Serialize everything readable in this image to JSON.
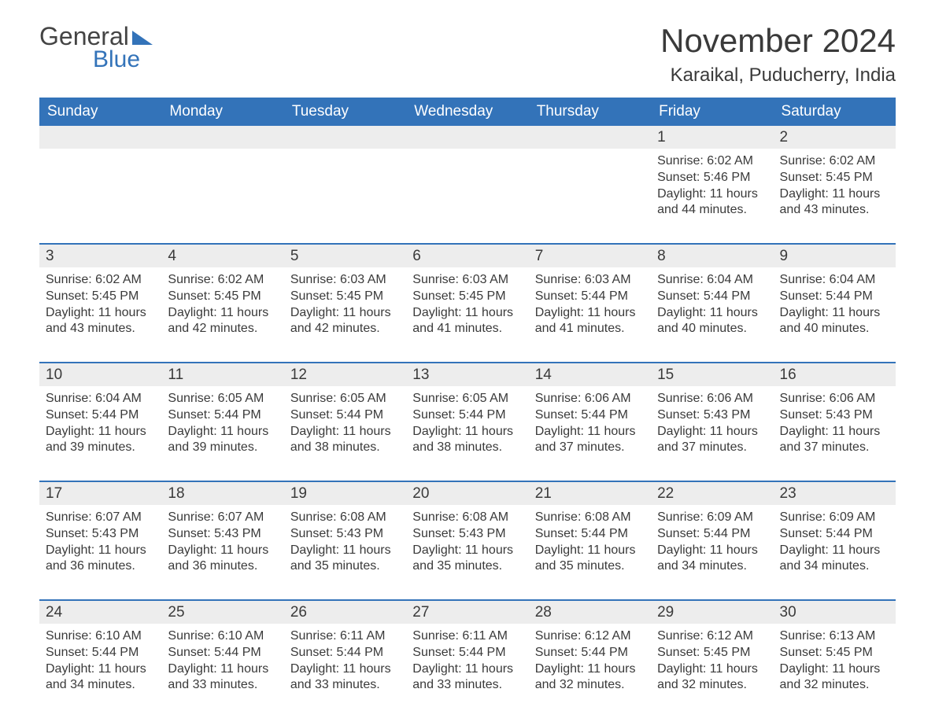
{
  "brand": {
    "word1": "General",
    "word2": "Blue"
  },
  "title": "November 2024",
  "location": "Karaikal, Puducherry, India",
  "colors": {
    "header_bg": "#3373b9",
    "header_text": "#ffffff",
    "daynum_bg": "#ededed",
    "week_divider": "#3373b9",
    "body_text": "#3a3a3a",
    "page_bg": "#ffffff",
    "logo_accent": "#3373b9"
  },
  "typography": {
    "title_fontsize": 42,
    "location_fontsize": 24,
    "dow_fontsize": 19,
    "daynum_fontsize": 19,
    "cell_fontsize": 16
  },
  "days_of_week": [
    "Sunday",
    "Monday",
    "Tuesday",
    "Wednesday",
    "Thursday",
    "Friday",
    "Saturday"
  ],
  "weeks": [
    [
      null,
      null,
      null,
      null,
      null,
      {
        "n": "1",
        "sunrise": "Sunrise: 6:02 AM",
        "sunset": "Sunset: 5:46 PM",
        "daylight": "Daylight: 11 hours and 44 minutes."
      },
      {
        "n": "2",
        "sunrise": "Sunrise: 6:02 AM",
        "sunset": "Sunset: 5:45 PM",
        "daylight": "Daylight: 11 hours and 43 minutes."
      }
    ],
    [
      {
        "n": "3",
        "sunrise": "Sunrise: 6:02 AM",
        "sunset": "Sunset: 5:45 PM",
        "daylight": "Daylight: 11 hours and 43 minutes."
      },
      {
        "n": "4",
        "sunrise": "Sunrise: 6:02 AM",
        "sunset": "Sunset: 5:45 PM",
        "daylight": "Daylight: 11 hours and 42 minutes."
      },
      {
        "n": "5",
        "sunrise": "Sunrise: 6:03 AM",
        "sunset": "Sunset: 5:45 PM",
        "daylight": "Daylight: 11 hours and 42 minutes."
      },
      {
        "n": "6",
        "sunrise": "Sunrise: 6:03 AM",
        "sunset": "Sunset: 5:45 PM",
        "daylight": "Daylight: 11 hours and 41 minutes."
      },
      {
        "n": "7",
        "sunrise": "Sunrise: 6:03 AM",
        "sunset": "Sunset: 5:44 PM",
        "daylight": "Daylight: 11 hours and 41 minutes."
      },
      {
        "n": "8",
        "sunrise": "Sunrise: 6:04 AM",
        "sunset": "Sunset: 5:44 PM",
        "daylight": "Daylight: 11 hours and 40 minutes."
      },
      {
        "n": "9",
        "sunrise": "Sunrise: 6:04 AM",
        "sunset": "Sunset: 5:44 PM",
        "daylight": "Daylight: 11 hours and 40 minutes."
      }
    ],
    [
      {
        "n": "10",
        "sunrise": "Sunrise: 6:04 AM",
        "sunset": "Sunset: 5:44 PM",
        "daylight": "Daylight: 11 hours and 39 minutes."
      },
      {
        "n": "11",
        "sunrise": "Sunrise: 6:05 AM",
        "sunset": "Sunset: 5:44 PM",
        "daylight": "Daylight: 11 hours and 39 minutes."
      },
      {
        "n": "12",
        "sunrise": "Sunrise: 6:05 AM",
        "sunset": "Sunset: 5:44 PM",
        "daylight": "Daylight: 11 hours and 38 minutes."
      },
      {
        "n": "13",
        "sunrise": "Sunrise: 6:05 AM",
        "sunset": "Sunset: 5:44 PM",
        "daylight": "Daylight: 11 hours and 38 minutes."
      },
      {
        "n": "14",
        "sunrise": "Sunrise: 6:06 AM",
        "sunset": "Sunset: 5:44 PM",
        "daylight": "Daylight: 11 hours and 37 minutes."
      },
      {
        "n": "15",
        "sunrise": "Sunrise: 6:06 AM",
        "sunset": "Sunset: 5:43 PM",
        "daylight": "Daylight: 11 hours and 37 minutes."
      },
      {
        "n": "16",
        "sunrise": "Sunrise: 6:06 AM",
        "sunset": "Sunset: 5:43 PM",
        "daylight": "Daylight: 11 hours and 37 minutes."
      }
    ],
    [
      {
        "n": "17",
        "sunrise": "Sunrise: 6:07 AM",
        "sunset": "Sunset: 5:43 PM",
        "daylight": "Daylight: 11 hours and 36 minutes."
      },
      {
        "n": "18",
        "sunrise": "Sunrise: 6:07 AM",
        "sunset": "Sunset: 5:43 PM",
        "daylight": "Daylight: 11 hours and 36 minutes."
      },
      {
        "n": "19",
        "sunrise": "Sunrise: 6:08 AM",
        "sunset": "Sunset: 5:43 PM",
        "daylight": "Daylight: 11 hours and 35 minutes."
      },
      {
        "n": "20",
        "sunrise": "Sunrise: 6:08 AM",
        "sunset": "Sunset: 5:43 PM",
        "daylight": "Daylight: 11 hours and 35 minutes."
      },
      {
        "n": "21",
        "sunrise": "Sunrise: 6:08 AM",
        "sunset": "Sunset: 5:44 PM",
        "daylight": "Daylight: 11 hours and 35 minutes."
      },
      {
        "n": "22",
        "sunrise": "Sunrise: 6:09 AM",
        "sunset": "Sunset: 5:44 PM",
        "daylight": "Daylight: 11 hours and 34 minutes."
      },
      {
        "n": "23",
        "sunrise": "Sunrise: 6:09 AM",
        "sunset": "Sunset: 5:44 PM",
        "daylight": "Daylight: 11 hours and 34 minutes."
      }
    ],
    [
      {
        "n": "24",
        "sunrise": "Sunrise: 6:10 AM",
        "sunset": "Sunset: 5:44 PM",
        "daylight": "Daylight: 11 hours and 34 minutes."
      },
      {
        "n": "25",
        "sunrise": "Sunrise: 6:10 AM",
        "sunset": "Sunset: 5:44 PM",
        "daylight": "Daylight: 11 hours and 33 minutes."
      },
      {
        "n": "26",
        "sunrise": "Sunrise: 6:11 AM",
        "sunset": "Sunset: 5:44 PM",
        "daylight": "Daylight: 11 hours and 33 minutes."
      },
      {
        "n": "27",
        "sunrise": "Sunrise: 6:11 AM",
        "sunset": "Sunset: 5:44 PM",
        "daylight": "Daylight: 11 hours and 33 minutes."
      },
      {
        "n": "28",
        "sunrise": "Sunrise: 6:12 AM",
        "sunset": "Sunset: 5:44 PM",
        "daylight": "Daylight: 11 hours and 32 minutes."
      },
      {
        "n": "29",
        "sunrise": "Sunrise: 6:12 AM",
        "sunset": "Sunset: 5:45 PM",
        "daylight": "Daylight: 11 hours and 32 minutes."
      },
      {
        "n": "30",
        "sunrise": "Sunrise: 6:13 AM",
        "sunset": "Sunset: 5:45 PM",
        "daylight": "Daylight: 11 hours and 32 minutes."
      }
    ]
  ]
}
